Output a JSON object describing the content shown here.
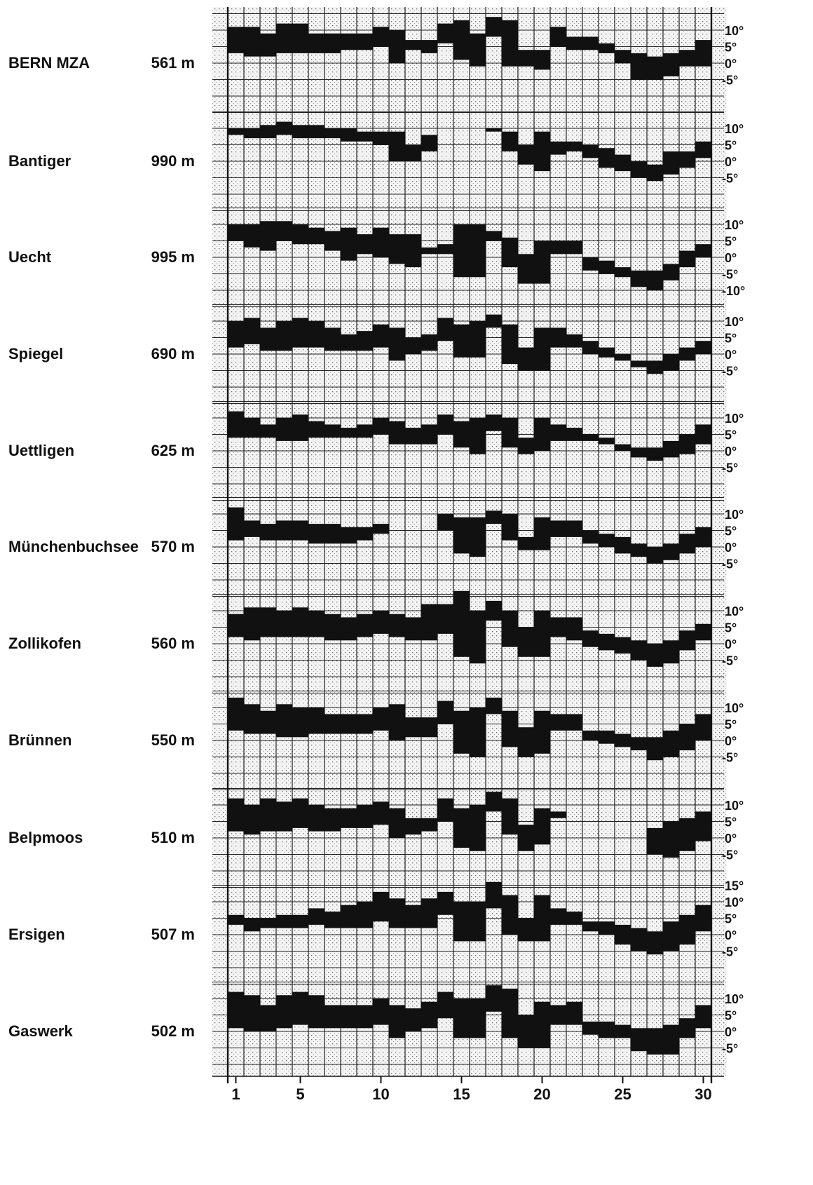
{
  "chart_data": {
    "type": "area",
    "title": "",
    "xlabel": "",
    "ylabel": "",
    "x_tick_labels": [
      "1",
      "5",
      "10",
      "15",
      "20",
      "25",
      "30"
    ],
    "x_ticks": [
      1,
      5,
      10,
      15,
      20,
      25,
      30
    ],
    "days": 30,
    "colors": {
      "band": "#111111",
      "grid": "#222222",
      "background": "#f7f7f7"
    },
    "stations": [
      {
        "name": "BERN MZA",
        "altitude": "561 m",
        "y_tick_labels": [
          "10°",
          "5°",
          "0°",
          "-5°"
        ],
        "y_ticks": [
          10,
          5,
          0,
          -5
        ],
        "max": [
          11,
          11,
          9,
          12,
          12,
          9,
          9,
          9,
          9,
          11,
          10,
          7,
          7,
          12,
          13,
          9,
          14,
          13,
          4,
          4,
          11,
          8,
          8,
          6,
          4,
          3,
          2,
          3,
          4,
          7
        ],
        "min": [
          3,
          2,
          2,
          3,
          3,
          3,
          3,
          4,
          4,
          5,
          0,
          4,
          3,
          6,
          1,
          -1,
          8,
          -1,
          -1,
          -2,
          5,
          4,
          4,
          3,
          0,
          -5,
          -5,
          -4,
          -1,
          -1
        ]
      },
      {
        "name": "Bantiger",
        "altitude": "990 m",
        "y_tick_labels": [
          "10°",
          "5°",
          "0°",
          "-5°"
        ],
        "y_ticks": [
          10,
          5,
          0,
          -5
        ],
        "max": [
          10,
          10,
          11,
          12,
          11,
          11,
          10,
          10,
          9,
          9,
          9,
          5,
          8,
          null,
          null,
          null,
          10,
          9,
          5,
          9,
          6,
          6,
          5,
          4,
          2,
          0,
          -1,
          3,
          3,
          6
        ],
        "min": [
          8,
          7,
          7,
          8,
          7,
          7,
          7,
          6,
          6,
          5,
          0,
          0,
          3,
          null,
          null,
          null,
          9,
          3,
          -1,
          -3,
          2,
          3,
          1,
          -2,
          -3,
          -5,
          -6,
          -4,
          -2,
          1
        ]
      },
      {
        "name": "Uecht",
        "altitude": "995 m",
        "y_tick_labels": [
          "10°",
          "5°",
          "0°",
          "-5°",
          "-10°"
        ],
        "y_ticks": [
          10,
          5,
          0,
          -5,
          -10
        ],
        "max": [
          10,
          10,
          11,
          11,
          10,
          9,
          8,
          9,
          7,
          9,
          7,
          7,
          3,
          4,
          10,
          10,
          8,
          6,
          1,
          5,
          5,
          5,
          0,
          -1,
          -3,
          -4,
          -4,
          -2,
          2,
          4
        ],
        "min": [
          5,
          3,
          2,
          5,
          4,
          4,
          2,
          -1,
          1,
          0,
          -2,
          -3,
          1,
          1,
          -6,
          -6,
          5,
          -3,
          -8,
          -8,
          1,
          1,
          -4,
          -5,
          -6,
          -9,
          -10,
          -7,
          -3,
          0
        ]
      },
      {
        "name": "Spiegel",
        "altitude": "690 m",
        "y_tick_labels": [
          "10°",
          "5°",
          "0°",
          "-5°"
        ],
        "y_ticks": [
          10,
          5,
          0,
          -5
        ],
        "max": [
          10,
          11,
          8,
          10,
          11,
          10,
          8,
          6,
          7,
          9,
          8,
          5,
          6,
          11,
          9,
          10,
          12,
          9,
          2,
          8,
          8,
          6,
          4,
          2,
          0,
          -2,
          -2,
          0,
          2,
          4
        ],
        "min": [
          2,
          3,
          1,
          1,
          2,
          2,
          1,
          1,
          1,
          2,
          -2,
          0,
          1,
          4,
          -1,
          -1,
          8,
          -3,
          -5,
          -5,
          2,
          2,
          0,
          -1,
          -2,
          -4,
          -6,
          -5,
          -2,
          0
        ]
      },
      {
        "name": "Uettligen",
        "altitude": "625 m",
        "y_tick_labels": [
          "10°",
          "5°",
          "0°",
          "-5°"
        ],
        "y_ticks": [
          10,
          5,
          0,
          -5
        ],
        "max": [
          12,
          10,
          8,
          10,
          11,
          9,
          8,
          7,
          8,
          10,
          9,
          7,
          8,
          11,
          9,
          10,
          11,
          10,
          4,
          10,
          8,
          7,
          5,
          4,
          2,
          1,
          1,
          3,
          5,
          8
        ],
        "min": [
          4,
          4,
          4,
          3,
          3,
          4,
          4,
          4,
          4,
          5,
          2,
          2,
          2,
          5,
          1,
          -1,
          6,
          1,
          -1,
          0,
          3,
          3,
          3,
          2,
          0,
          -2,
          -3,
          -2,
          -1,
          2
        ]
      },
      {
        "name": "Münchenbuchsee",
        "altitude": "570 m",
        "y_tick_labels": [
          "10°",
          "5°",
          "0°",
          "-5°"
        ],
        "y_ticks": [
          10,
          5,
          0,
          -5
        ],
        "max": [
          12,
          8,
          7,
          8,
          8,
          7,
          7,
          6,
          6,
          7,
          null,
          null,
          null,
          10,
          9,
          9,
          11,
          10,
          3,
          9,
          8,
          8,
          5,
          4,
          3,
          1,
          0,
          1,
          4,
          6
        ],
        "min": [
          2,
          3,
          2,
          2,
          2,
          1,
          1,
          1,
          2,
          4,
          null,
          null,
          null,
          5,
          -2,
          -3,
          7,
          2,
          -1,
          -1,
          3,
          3,
          1,
          0,
          -2,
          -3,
          -5,
          -4,
          -2,
          0
        ]
      },
      {
        "name": "Zollikofen",
        "altitude": "560 m",
        "y_tick_labels": [
          "10°",
          "5°",
          "0°",
          "-5°"
        ],
        "y_ticks": [
          10,
          5,
          0,
          -5
        ],
        "max": [
          9,
          11,
          11,
          10,
          11,
          10,
          9,
          8,
          9,
          10,
          9,
          8,
          12,
          12,
          16,
          10,
          13,
          10,
          5,
          10,
          8,
          8,
          4,
          3,
          2,
          1,
          0,
          1,
          4,
          6
        ],
        "min": [
          2,
          1,
          2,
          2,
          2,
          2,
          1,
          1,
          2,
          3,
          2,
          1,
          1,
          3,
          -4,
          -6,
          7,
          -1,
          -4,
          -4,
          2,
          1,
          -1,
          -2,
          -3,
          -5,
          -7,
          -6,
          -2,
          1
        ]
      },
      {
        "name": "Brünnen",
        "altitude": "550 m",
        "y_tick_labels": [
          "10°",
          "5°",
          "0°",
          "-5°"
        ],
        "y_ticks": [
          10,
          5,
          0,
          -5
        ],
        "max": [
          13,
          11,
          9,
          11,
          10,
          10,
          8,
          8,
          8,
          10,
          11,
          7,
          7,
          12,
          9,
          10,
          13,
          9,
          4,
          9,
          8,
          8,
          3,
          3,
          2,
          1,
          1,
          3,
          5,
          8
        ],
        "min": [
          3,
          2,
          2,
          1,
          1,
          2,
          2,
          2,
          2,
          3,
          0,
          1,
          1,
          5,
          -4,
          -5,
          8,
          -2,
          -5,
          -4,
          3,
          3,
          0,
          -1,
          -2,
          -3,
          -6,
          -5,
          -3,
          0
        ]
      },
      {
        "name": "Belpmoos",
        "altitude": "510 m",
        "y_tick_labels": [
          "10°",
          "5°",
          "0°",
          "-5°"
        ],
        "y_ticks": [
          10,
          5,
          0,
          -5
        ],
        "max": [
          12,
          10,
          12,
          11,
          12,
          10,
          9,
          9,
          10,
          11,
          9,
          6,
          6,
          12,
          9,
          10,
          14,
          12,
          4,
          9,
          8,
          null,
          null,
          null,
          null,
          null,
          3,
          5,
          6,
          8
        ],
        "min": [
          2,
          1,
          2,
          2,
          3,
          2,
          2,
          3,
          3,
          4,
          0,
          1,
          2,
          5,
          -3,
          -4,
          8,
          1,
          -4,
          -2,
          6,
          null,
          null,
          null,
          null,
          null,
          -5,
          -6,
          -4,
          -1
        ]
      },
      {
        "name": "Ersigen",
        "altitude": "507 m",
        "y_tick_labels": [
          "15°",
          "10°",
          "5°",
          "0°",
          "-5°"
        ],
        "y_ticks": [
          15,
          10,
          5,
          0,
          -5
        ],
        "max": [
          6,
          5,
          5,
          6,
          6,
          8,
          7,
          9,
          10,
          13,
          11,
          9,
          11,
          13,
          10,
          10,
          16,
          12,
          5,
          12,
          8,
          7,
          4,
          4,
          3,
          2,
          1,
          4,
          6,
          9
        ],
        "min": [
          3,
          1,
          2,
          2,
          2,
          3,
          2,
          2,
          2,
          4,
          2,
          2,
          2,
          6,
          -2,
          -2,
          8,
          0,
          -2,
          -2,
          3,
          3,
          1,
          0,
          -3,
          -5,
          -6,
          -5,
          -3,
          1
        ]
      },
      {
        "name": "Gaswerk",
        "altitude": "502 m",
        "y_tick_labels": [
          "10°",
          "5°",
          "0°",
          "-5°"
        ],
        "y_ticks": [
          10,
          5,
          0,
          -5
        ],
        "max": [
          12,
          11,
          8,
          11,
          12,
          11,
          8,
          8,
          8,
          10,
          8,
          7,
          9,
          12,
          10,
          10,
          14,
          13,
          5,
          9,
          8,
          9,
          3,
          3,
          2,
          1,
          1,
          2,
          4,
          8
        ],
        "min": [
          1,
          0,
          0,
          1,
          2,
          1,
          1,
          1,
          1,
          2,
          -2,
          0,
          1,
          4,
          -2,
          -2,
          6,
          -2,
          -5,
          -5,
          2,
          2,
          -1,
          -2,
          -2,
          -6,
          -7,
          -7,
          -2,
          1
        ]
      }
    ]
  }
}
